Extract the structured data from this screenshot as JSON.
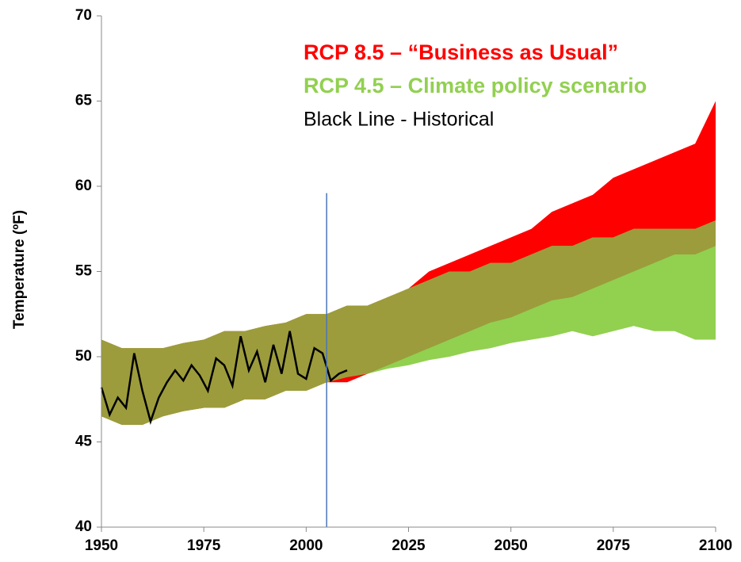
{
  "chart_data": {
    "type": "band",
    "y_label": "Temperature (ºF)",
    "x": [
      1950,
      1955,
      1960,
      1965,
      1970,
      1975,
      1980,
      1985,
      1990,
      1995,
      2000,
      2005,
      2010,
      2015,
      2020,
      2025,
      2030,
      2035,
      2040,
      2045,
      2050,
      2055,
      2060,
      2065,
      2070,
      2075,
      2080,
      2085,
      2090,
      2095,
      2100
    ],
    "series": [
      {
        "name": "RCP 8.5 – “Business as Usual”",
        "color": "#ff0000",
        "lower": [
          46.5,
          46,
          46,
          46.5,
          46.8,
          47,
          47,
          47.5,
          47.5,
          48,
          48,
          48.5,
          48.5,
          49,
          49.5,
          50,
          50.5,
          51,
          51.5,
          52,
          52.3,
          52.8,
          53.3,
          53.5,
          54,
          54.5,
          55,
          55.5,
          56,
          56,
          56.5
        ],
        "upper": [
          51,
          50.5,
          50.5,
          50.5,
          50.8,
          51,
          51.5,
          51.5,
          51.8,
          52,
          52.5,
          52.5,
          53,
          53,
          53.5,
          54,
          55,
          55.5,
          56,
          56.5,
          57,
          57.5,
          58.5,
          59,
          59.5,
          60.5,
          61,
          61.5,
          62,
          62.5,
          65
        ]
      },
      {
        "name": "RCP 4.5 – Climate policy scenario",
        "color": "#92d050",
        "lower": [
          46.5,
          46,
          46,
          46.5,
          46.8,
          47,
          47,
          47.5,
          47.5,
          48,
          48,
          48.5,
          48.8,
          49,
          49.3,
          49.5,
          49.8,
          50,
          50.3,
          50.5,
          50.8,
          51,
          51.2,
          51.5,
          51.2,
          51.5,
          51.8,
          51.5,
          51.5,
          51,
          51
        ],
        "upper": [
          51,
          50.5,
          50.5,
          50.5,
          50.8,
          51,
          51.5,
          51.5,
          51.8,
          52,
          52.5,
          52.5,
          53,
          53,
          53.5,
          54,
          54.5,
          55,
          55,
          55.5,
          55.5,
          56,
          56.5,
          56.5,
          57,
          57,
          57.5,
          57.5,
          57.5,
          57.5,
          58
        ]
      },
      {
        "name": "Black Line - Historical",
        "color": "#000000",
        "x": [
          1950,
          1952,
          1954,
          1956,
          1958,
          1960,
          1962,
          1964,
          1966,
          1968,
          1970,
          1972,
          1974,
          1976,
          1978,
          1980,
          1982,
          1984,
          1986,
          1988,
          1990,
          1992,
          1994,
          1996,
          1998,
          2000,
          2002,
          2004,
          2006,
          2008,
          2010
        ],
        "values": [
          48.2,
          46.6,
          47.6,
          47.0,
          50.2,
          48.0,
          46.2,
          47.6,
          48.5,
          49.2,
          48.6,
          49.5,
          48.9,
          48.0,
          49.9,
          49.5,
          48.3,
          51.2,
          49.2,
          50.3,
          48.5,
          50.7,
          49.0,
          51.5,
          49.0,
          48.7,
          50.5,
          50.2,
          48.6,
          49.0,
          49.2
        ]
      }
    ],
    "overlap_color": "#9c9c3c",
    "vline": {
      "x": 2005,
      "top": 59.6,
      "color": "#4a76b8"
    },
    "xlim": [
      1950,
      2100
    ],
    "xticks": [
      1950,
      1975,
      2000,
      2025,
      2050,
      2075,
      2100
    ],
    "ylim": [
      40,
      70
    ],
    "yticks": [
      40,
      45,
      50,
      55,
      60,
      65,
      70
    ]
  }
}
